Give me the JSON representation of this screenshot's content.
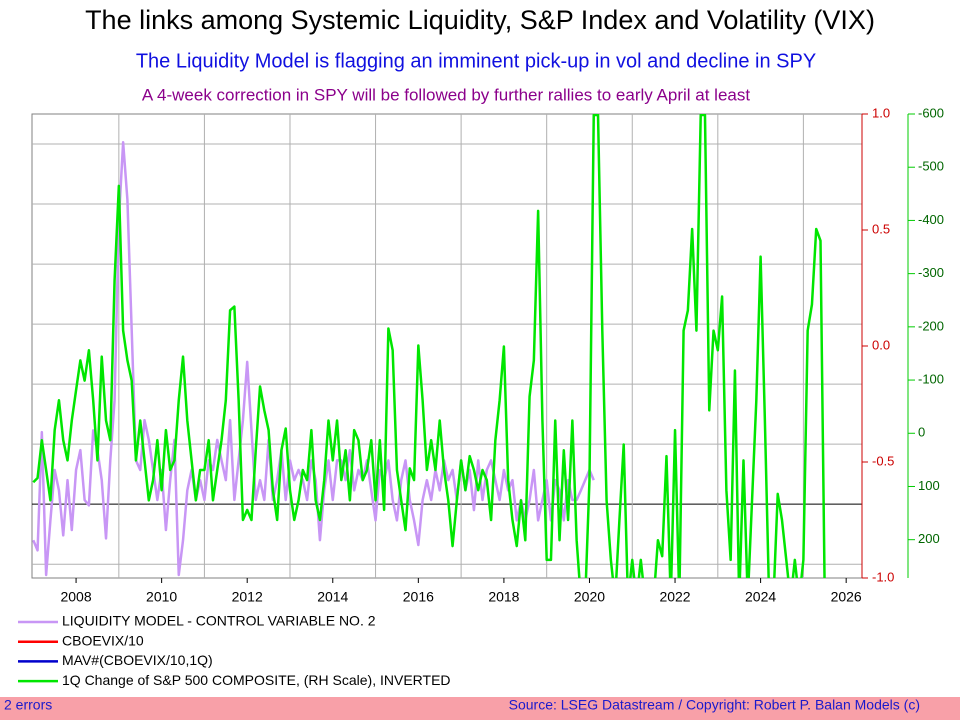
{
  "chart_data": {
    "type": "line",
    "title": "The links among Systemic Liquidity, S&P Index and Volatility (VIX)",
    "subtitle": "The Liquidity Model is flagging an imminent pick-up in vol and decline in SPY",
    "annotation": "A 4-week correction in SPY will be followed by further rallies to early April at least",
    "x": [
      2007,
      2007.1,
      2007.2,
      2007.3,
      2007.4,
      2007.5,
      2007.6,
      2007.7,
      2007.8,
      2007.9,
      2008,
      2008.1,
      2008.2,
      2008.3,
      2008.4,
      2008.5,
      2008.6,
      2008.7,
      2008.8,
      2008.9,
      2009,
      2009.1,
      2009.2,
      2009.3,
      2009.4,
      2009.5,
      2009.6,
      2009.7,
      2009.8,
      2009.9,
      2010,
      2010.1,
      2010.2,
      2010.3,
      2010.4,
      2010.5,
      2010.6,
      2010.7,
      2010.8,
      2010.9,
      2011,
      2011.1,
      2011.2,
      2011.3,
      2011.4,
      2011.5,
      2011.6,
      2011.7,
      2011.8,
      2011.9,
      2012,
      2012.1,
      2012.2,
      2012.3,
      2012.4,
      2012.5,
      2012.6,
      2012.7,
      2012.8,
      2012.9,
      2013,
      2013.1,
      2013.2,
      2013.3,
      2013.4,
      2013.5,
      2013.6,
      2013.7,
      2013.8,
      2013.9,
      2014,
      2014.1,
      2014.2,
      2014.3,
      2014.4,
      2014.5,
      2014.6,
      2014.7,
      2014.8,
      2014.9,
      2015,
      2015.1,
      2015.2,
      2015.3,
      2015.4,
      2015.5,
      2015.6,
      2015.7,
      2015.8,
      2015.9,
      2016,
      2016.1,
      2016.2,
      2016.3,
      2016.4,
      2016.5,
      2016.6,
      2016.7,
      2016.8,
      2016.9,
      2017,
      2017.1,
      2017.2,
      2017.3,
      2017.4,
      2017.5,
      2017.6,
      2017.7,
      2017.8,
      2017.9,
      2018,
      2018.1,
      2018.2,
      2018.3,
      2018.4,
      2018.5,
      2018.6,
      2018.7,
      2018.8,
      2018.9,
      2019,
      2019.1,
      2019.2,
      2019.3,
      2019.4,
      2019.5,
      2019.6,
      2019.7,
      2019.8,
      2019.9,
      2020,
      2020.1,
      2020.2,
      2020.3,
      2020.4,
      2020.5,
      2020.6,
      2020.7,
      2020.8,
      2020.9,
      2021,
      2021.1,
      2021.2,
      2021.3,
      2021.4,
      2021.5,
      2021.6,
      2021.7,
      2021.8,
      2021.9,
      2022,
      2022.1,
      2022.2,
      2022.3,
      2022.4,
      2022.5,
      2022.6,
      2022.7,
      2022.8,
      2022.9,
      2023,
      2023.1,
      2023.2,
      2023.3,
      2023.4,
      2023.5,
      2023.6,
      2023.7,
      2023.8,
      2023.9,
      2024,
      2024.1,
      2024.2,
      2024.3,
      2024.4,
      2024.5,
      2024.6,
      2024.7,
      2024.8,
      2024.9,
      2025,
      2025.1,
      2025.2,
      2025.3,
      2025.4,
      2025.5
    ],
    "xlim": [
      2006.97,
      2026.37
    ],
    "xticks": [
      2008,
      2010,
      2012,
      2014,
      2016,
      2018,
      2020,
      2022,
      2024,
      2026
    ],
    "xgrid": [
      2009,
      2011,
      2013,
      2015,
      2017,
      2019,
      2021,
      2023,
      2025
    ],
    "ylim": [
      -1.23,
      6.5
    ],
    "ygrid": [
      -1,
      0,
      1,
      2,
      3,
      4,
      5,
      6
    ],
    "y2lim": [
      272,
      -600
    ],
    "y2ticks": [
      -600,
      -500,
      -400,
      -300,
      -200,
      -100,
      0,
      100,
      200
    ],
    "y3lim": [
      -1,
      1
    ],
    "y3ticks": [
      {
        "value": 1,
        "label": "1.0"
      },
      {
        "value": 0.5,
        "label": "0.5"
      },
      {
        "value": 0,
        "label": "0.0"
      },
      {
        "value": -0.5,
        "label": "-0.5"
      },
      {
        "value": -1,
        "label": "-1.0"
      }
    ],
    "grid": true,
    "series": [
      {
        "name": "LIQUIDITY MODEL - CONTROL VARIABLE NO. 2",
        "color": "#c896f5",
        "axis": "y",
        "values": [
          -0.6,
          -0.77,
          1.2,
          -1.18,
          -0.27,
          0.57,
          0.23,
          -0.52,
          0.4,
          -0.43,
          0.57,
          0.9,
          0.07,
          -0.02,
          1.23,
          0.9,
          0.4,
          -0.57,
          0.73,
          1.73,
          4.73,
          6.03,
          5.07,
          2.9,
          0.73,
          0.57,
          1.4,
          1.07,
          0.57,
          0.07,
          0.57,
          -0.43,
          0.4,
          1.07,
          -1.18,
          -0.6,
          0.23,
          0.57,
          0.07,
          0.4,
          0.07,
          0.73,
          0.57,
          1.07,
          0.73,
          0.4,
          1.4,
          0.07,
          0.73,
          1.4,
          2.37,
          1.23,
          0.07,
          0.4,
          0.07,
          1.07,
          0.07,
          0.4,
          0.9,
          0.07,
          0.73,
          0.4,
          0.57,
          0.4,
          0.07,
          0.73,
          0.4,
          -0.6,
          0.23,
          0.73,
          0.07,
          0.73,
          0.73,
          0.4,
          0.9,
          0.23,
          0.57,
          0.4,
          0.73,
          0.23,
          -0.27,
          0.57,
          0.4,
          0.73,
          0.07,
          -0.27,
          0.4,
          0.73,
          0.07,
          -0.27,
          -0.68,
          0.07,
          0.4,
          0.07,
          0.57,
          0.23,
          0.73,
          0.4,
          0.57,
          0.07,
          0.73,
          0.23,
          0.57,
          -0.1,
          0.73,
          0.07,
          0.57,
          0.73,
          0.4,
          0.07,
          0.57,
          0.23,
          0.4,
          -0.27,
          0.07,
          -0.27,
          0.07,
          0.57,
          -0.27,
          0.07,
          0.4,
          -0.27,
          0.4,
          0.23,
          -0.27,
          0.4,
          0.07,
          0.07,
          0.23,
          0.4,
          0.57,
          0.4,
          null,
          null,
          null,
          null,
          null,
          null,
          null,
          null,
          null,
          null,
          null,
          null,
          null,
          null,
          null,
          null,
          null,
          null,
          null,
          null,
          null,
          null,
          null,
          null,
          null,
          null,
          null,
          null,
          null,
          null,
          null,
          null,
          null,
          null,
          null,
          null,
          null,
          null,
          null,
          null,
          null,
          null,
          null,
          null,
          null,
          null,
          null,
          null,
          null,
          null,
          null,
          null,
          null,
          null
        ]
      },
      {
        "name": "CBOEVIX/10",
        "color": "#ff0000",
        "axis": "y3"
      },
      {
        "name": "MAV#(CBOEVIX/10,1Q)",
        "color": "#0000cc",
        "axis": "y3"
      },
      {
        "name": "1Q Change of S&P 500 COMPOSITE, (RH Scale), INVERTED",
        "color": "#00e600",
        "axis": "y2",
        "values": [
          92,
          84,
          13,
          69,
          126,
          -6,
          -62,
          13,
          51,
          -24,
          -81,
          -137,
          -99,
          -156,
          -62,
          51,
          -144,
          -24,
          13,
          -287,
          -465,
          -193,
          -137,
          -99,
          51,
          -24,
          51,
          126,
          88,
          13,
          107,
          -6,
          69,
          51,
          -62,
          -144,
          -24,
          51,
          126,
          69,
          69,
          13,
          126,
          69,
          13,
          -62,
          -231,
          -238,
          -62,
          163,
          144,
          163,
          32,
          -88,
          -43,
          -6,
          107,
          163,
          32,
          -9,
          107,
          163,
          126,
          69,
          88,
          -6,
          126,
          163,
          88,
          -24,
          51,
          -24,
          88,
          32,
          126,
          -6,
          13,
          88,
          69,
          13,
          126,
          13,
          144,
          -197,
          -156,
          69,
          126,
          182,
          66,
          88,
          -165,
          -62,
          69,
          13,
          69,
          -24,
          69,
          126,
          212,
          126,
          51,
          107,
          43,
          69,
          107,
          69,
          88,
          163,
          13,
          -62,
          -163,
          88,
          163,
          212,
          126,
          201,
          -69,
          -137,
          -418,
          -24,
          238,
          238,
          -24,
          201,
          32,
          163,
          -24,
          201,
          313,
          313,
          88,
          -598,
          -598,
          -193,
          126,
          238,
          313,
          163,
          21,
          313,
          238,
          313,
          238,
          313,
          313,
          313,
          201,
          231,
          43,
          313,
          -6,
          313,
          -193,
          -231,
          -384,
          -193,
          -598,
          -598,
          -43,
          -193,
          -156,
          -257,
          107,
          238,
          -118,
          313,
          51,
          313,
          126,
          -62,
          -332,
          -24,
          313,
          313,
          114,
          163,
          238,
          313,
          238,
          313,
          238,
          -193,
          -242,
          -384,
          -362,
          313
        ]
      }
    ]
  },
  "footer": {
    "status": "2 errors",
    "source": "Source: LSEG Datastream / Copyright: Robert P. Balan Models (c)"
  }
}
